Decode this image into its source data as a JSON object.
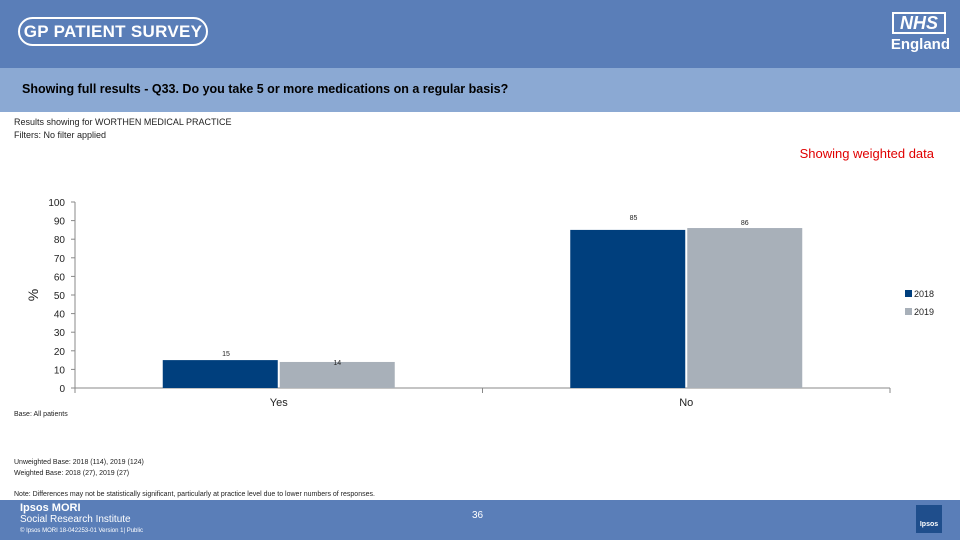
{
  "header": {
    "logo_text": "GP PATIENT SURVEY",
    "nhs_text": "NHS",
    "nhs_sub": "England"
  },
  "question": "Showing full results - Q33.  Do you take 5 or more medications on a regular basis?",
  "results_for": "Results showing for WORTHEN MEDICAL PRACTICE",
  "filters": "Filters: No filter applied",
  "weighted_label": "Showing weighted data",
  "base": "Base: All patients",
  "unweighted_base": "Unweighted Base: 2018 (114), 2019 (124)",
  "weighted_base": "Weighted Base: 2018 (27), 2019 (27)",
  "note": "Note: Differences may not be statistically significant, particularly at practice level due to lower numbers of responses.",
  "footer": {
    "org_line1": "Ipsos MORI",
    "org_line2": "Social Research Institute",
    "org_line3": "© Ipsos MORI      18-042253-01 Version 1| Public",
    "page_number": "36",
    "logo_text": "Ipsos"
  },
  "colors": {
    "series_2018": "#003f7d",
    "series_2019": "#a8b0b9",
    "header": "#5a7eb8",
    "question_bar": "#8ba9d3",
    "weighted_label": "#e00000"
  },
  "chart_data": {
    "type": "bar",
    "categories": [
      "Yes",
      "No"
    ],
    "series": [
      {
        "name": "2018",
        "values": [
          15,
          85
        ]
      },
      {
        "name": "2019",
        "values": [
          14,
          86
        ]
      }
    ],
    "ylabel": "%",
    "ylim": [
      0,
      100
    ],
    "yticks": [
      0,
      10,
      20,
      30,
      40,
      50,
      60,
      70,
      80,
      90,
      100
    ],
    "legend_position": "right"
  }
}
